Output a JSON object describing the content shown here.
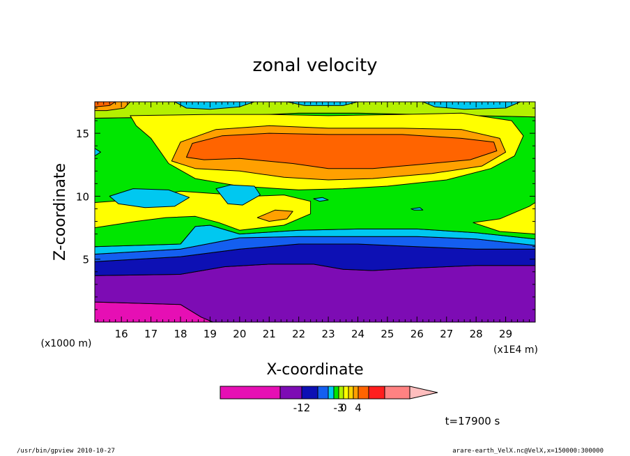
{
  "chart_data": {
    "type": "heatmap",
    "title": "zonal velocity",
    "xlabel": "X-coordinate",
    "ylabel": "Z-coordinate",
    "x_unit_left": "(x1000 m)",
    "x_unit_right": "(x1E4 m)",
    "x_ticks": [
      "16",
      "17",
      "18",
      "19",
      "20",
      "21",
      "22",
      "23",
      "24",
      "25",
      "26",
      "27",
      "28",
      "29"
    ],
    "y_ticks": [
      "5",
      "10",
      "15"
    ],
    "xlim": [
      15.1,
      30
    ],
    "ylim": [
      0,
      17.5
    ],
    "time_label": "t=17900 s",
    "colorbar": {
      "colors": [
        "#e60fb4",
        "#7d0cb4",
        "#0d10b4",
        "#145ff0",
        "#00c8f0",
        "#00e600",
        "#b4f000",
        "#ffff00",
        "#ffd200",
        "#ffa000",
        "#ff6400",
        "#ff1e1e",
        "#ff8282",
        "#ffbebe"
      ],
      "tick_labels": [
        {
          "text": "-12",
          "at_boundary": 2
        },
        {
          "text": "-3",
          "at_boundary": 6
        },
        {
          "text": "0",
          "at_boundary": 7
        },
        {
          "text": "4",
          "at_boundary": 10
        }
      ]
    },
    "bands": [
      {
        "color": "#e60fb4",
        "points": [
          [
            15.1,
            0
          ],
          [
            19.1,
            0
          ],
          [
            18.7,
            0.4
          ],
          [
            18.0,
            1.4
          ],
          [
            15.1,
            1.6
          ]
        ]
      },
      {
        "color": "#7d0cb4",
        "points": [
          [
            15.1,
            1.6
          ],
          [
            18.0,
            1.4
          ],
          [
            18.7,
            0.4
          ],
          [
            19.1,
            0
          ],
          [
            30,
            0
          ],
          [
            30,
            4.5
          ],
          [
            28,
            4.5
          ],
          [
            26,
            4.3
          ],
          [
            24.5,
            4.1
          ],
          [
            23.5,
            4.2
          ],
          [
            22.5,
            4.6
          ],
          [
            21,
            4.6
          ],
          [
            19.5,
            4.4
          ],
          [
            18,
            3.8
          ],
          [
            15.1,
            3.7
          ]
        ]
      },
      {
        "color": "#0d10b4",
        "points": [
          [
            15.1,
            3.7
          ],
          [
            18,
            3.8
          ],
          [
            19.5,
            4.4
          ],
          [
            21,
            4.6
          ],
          [
            22.5,
            4.6
          ],
          [
            23.5,
            4.2
          ],
          [
            24.5,
            4.1
          ],
          [
            26,
            4.3
          ],
          [
            28,
            4.5
          ],
          [
            30,
            4.5
          ],
          [
            30,
            5.8
          ],
          [
            28,
            5.8
          ],
          [
            26,
            6.0
          ],
          [
            24,
            6.2
          ],
          [
            22,
            6.2
          ],
          [
            20,
            5.8
          ],
          [
            18,
            5.2
          ],
          [
            15.1,
            4.8
          ]
        ]
      },
      {
        "color": "#145ff0",
        "points": [
          [
            15.1,
            4.8
          ],
          [
            18,
            5.2
          ],
          [
            20,
            5.8
          ],
          [
            22,
            6.2
          ],
          [
            24,
            6.2
          ],
          [
            26,
            6.0
          ],
          [
            28,
            5.8
          ],
          [
            30,
            5.8
          ],
          [
            30,
            6.1
          ],
          [
            28,
            6.6
          ],
          [
            26,
            6.8
          ],
          [
            24,
            6.8
          ],
          [
            22,
            6.8
          ],
          [
            20,
            6.7
          ],
          [
            18,
            5.8
          ],
          [
            15.1,
            5.4
          ]
        ]
      },
      {
        "color": "#00c8f0",
        "points": [
          [
            15.1,
            5.4
          ],
          [
            18,
            5.8
          ],
          [
            20,
            6.7
          ],
          [
            22,
            6.8
          ],
          [
            24,
            6.8
          ],
          [
            26,
            6.8
          ],
          [
            28,
            6.6
          ],
          [
            30,
            6.1
          ],
          [
            30,
            6.6
          ],
          [
            28,
            7.1
          ],
          [
            26,
            7.4
          ],
          [
            24,
            7.4
          ],
          [
            22,
            7.3
          ],
          [
            20,
            7.0
          ],
          [
            19,
            7.7
          ],
          [
            18.5,
            7.6
          ],
          [
            18.0,
            6.2
          ],
          [
            15.1,
            6.0
          ]
        ]
      },
      {
        "color": "#00e600",
        "points": [
          [
            15.1,
            6.0
          ],
          [
            18.0,
            6.2
          ],
          [
            18.5,
            7.6
          ],
          [
            19,
            7.7
          ],
          [
            20,
            7.0
          ],
          [
            22,
            7.3
          ],
          [
            24,
            7.4
          ],
          [
            26,
            7.4
          ],
          [
            28,
            7.1
          ],
          [
            30,
            6.6
          ],
          [
            30,
            16.3
          ],
          [
            28,
            16.4
          ],
          [
            26,
            16.5
          ],
          [
            24,
            16.6
          ],
          [
            22,
            16.6
          ],
          [
            20,
            16.4
          ],
          [
            18,
            16.3
          ],
          [
            15.1,
            16.2
          ]
        ]
      },
      {
        "color": "#b4f000",
        "points": [
          [
            15.1,
            16.2
          ],
          [
            18,
            16.3
          ],
          [
            20,
            16.4
          ],
          [
            22,
            16.6
          ],
          [
            24,
            16.6
          ],
          [
            26,
            16.5
          ],
          [
            28,
            16.4
          ],
          [
            30,
            16.3
          ],
          [
            30,
            17.5
          ],
          [
            15.1,
            17.5
          ]
        ]
      },
      {
        "color": "#ffff00",
        "points": [
          [
            16.3,
            16.4
          ],
          [
            19.0,
            16.5
          ],
          [
            21,
            16.5
          ],
          [
            23,
            16.4
          ],
          [
            25.5,
            16.5
          ],
          [
            27.5,
            16.6
          ],
          [
            29.2,
            16.0
          ],
          [
            29.6,
            14.8
          ],
          [
            29.3,
            13.2
          ],
          [
            28.5,
            12.2
          ],
          [
            27,
            11.3
          ],
          [
            25,
            10.8
          ],
          [
            23.5,
            10.6
          ],
          [
            22,
            10.5
          ],
          [
            20,
            10.8
          ],
          [
            18.5,
            11.4
          ],
          [
            17.6,
            12.6
          ],
          [
            17.3,
            13.6
          ],
          [
            17.0,
            14.6
          ],
          [
            16.5,
            15.6
          ]
        ]
      },
      {
        "color": "#ffff00",
        "points": [
          [
            15.1,
            9.5
          ],
          [
            16.3,
            9.7
          ],
          [
            18.0,
            10.4
          ],
          [
            19.2,
            10.2
          ],
          [
            20.5,
            10.0
          ],
          [
            21.5,
            10.1
          ],
          [
            22.4,
            9.6
          ],
          [
            22.4,
            8.6
          ],
          [
            21.5,
            7.7
          ],
          [
            20.0,
            7.3
          ],
          [
            19.3,
            7.9
          ],
          [
            18.5,
            8.4
          ],
          [
            17.5,
            8.3
          ],
          [
            16.5,
            8.0
          ],
          [
            15.1,
            7.5
          ]
        ]
      },
      {
        "color": "#ffff00",
        "points": [
          [
            27.9,
            7.9
          ],
          [
            28.8,
            8.2
          ],
          [
            29.8,
            9.2
          ],
          [
            30,
            9.5
          ],
          [
            30,
            7.0
          ],
          [
            28.8,
            7.2
          ]
        ]
      },
      {
        "color": "#ffa000",
        "points": [
          [
            17.7,
            12.8
          ],
          [
            18.0,
            14.3
          ],
          [
            19.2,
            15.3
          ],
          [
            21,
            15.6
          ],
          [
            23,
            15.4
          ],
          [
            25.5,
            15.4
          ],
          [
            27.5,
            15.3
          ],
          [
            28.8,
            14.6
          ],
          [
            29.0,
            13.5
          ],
          [
            28.2,
            12.4
          ],
          [
            26.5,
            11.8
          ],
          [
            24.5,
            11.4
          ],
          [
            23,
            11.3
          ],
          [
            21.5,
            11.5
          ],
          [
            20,
            12.0
          ],
          [
            18.5,
            12.2
          ]
        ]
      },
      {
        "color": "#ffa000",
        "points": [
          [
            20.6,
            8.3
          ],
          [
            21.2,
            8.9
          ],
          [
            21.8,
            8.8
          ],
          [
            21.6,
            8.2
          ],
          [
            21.0,
            8.0
          ]
        ]
      },
      {
        "color": "#ffa000",
        "points": [
          [
            15.1,
            17.5
          ],
          [
            16.3,
            17.5
          ],
          [
            16.1,
            17.0
          ],
          [
            15.5,
            16.8
          ],
          [
            15.1,
            16.8
          ]
        ]
      },
      {
        "color": "#ff6400",
        "points": [
          [
            18.2,
            13.1
          ],
          [
            18.4,
            14.2
          ],
          [
            19.4,
            14.8
          ],
          [
            21,
            15.0
          ],
          [
            23,
            14.9
          ],
          [
            25.5,
            14.9
          ],
          [
            27.5,
            14.6
          ],
          [
            28.6,
            14.3
          ],
          [
            28.7,
            13.6
          ],
          [
            27.8,
            12.9
          ],
          [
            26,
            12.5
          ],
          [
            24.5,
            12.2
          ],
          [
            23,
            12.2
          ],
          [
            21.8,
            12.6
          ],
          [
            20,
            13.0
          ],
          [
            18.8,
            12.9
          ]
        ]
      },
      {
        "color": "#ff6400",
        "points": [
          [
            15.1,
            17.5
          ],
          [
            15.8,
            17.5
          ],
          [
            15.6,
            17.2
          ],
          [
            15.1,
            17.1
          ]
        ]
      },
      {
        "color": "#00c8f0",
        "points": [
          [
            15.6,
            10.0
          ],
          [
            16.4,
            10.6
          ],
          [
            17.6,
            10.5
          ],
          [
            18.3,
            9.9
          ],
          [
            17.8,
            9.2
          ],
          [
            16.8,
            9.1
          ],
          [
            15.9,
            9.4
          ]
        ]
      },
      {
        "color": "#00c8f0",
        "points": [
          [
            19.2,
            10.6
          ],
          [
            19.7,
            10.9
          ],
          [
            20.5,
            10.8
          ],
          [
            20.7,
            10.1
          ],
          [
            20.1,
            9.3
          ],
          [
            19.6,
            9.4
          ]
        ]
      },
      {
        "color": "#00c8f0",
        "points": [
          [
            22.5,
            9.8
          ],
          [
            22.8,
            9.9
          ],
          [
            23.0,
            9.7
          ],
          [
            22.7,
            9.6
          ]
        ]
      },
      {
        "color": "#00c8f0",
        "points": [
          [
            25.8,
            9.0
          ],
          [
            26.1,
            9.1
          ],
          [
            26.2,
            8.9
          ],
          [
            25.9,
            8.9
          ]
        ]
      },
      {
        "color": "#00c8f0",
        "points": [
          [
            17.8,
            17.5
          ],
          [
            20.5,
            17.5
          ],
          [
            20.0,
            17.1
          ],
          [
            19.0,
            16.9
          ],
          [
            18.2,
            17.0
          ]
        ]
      },
      {
        "color": "#00c8f0",
        "points": [
          [
            21.6,
            17.5
          ],
          [
            24.0,
            17.5
          ],
          [
            23.5,
            17.2
          ],
          [
            22.2,
            17.2
          ]
        ]
      },
      {
        "color": "#00c8f0",
        "points": [
          [
            26.2,
            17.5
          ],
          [
            29.5,
            17.5
          ],
          [
            29.0,
            17.0
          ],
          [
            27.6,
            16.9
          ],
          [
            26.6,
            17.1
          ]
        ]
      },
      {
        "color": "#00c8f0",
        "points": [
          [
            15.1,
            13.8
          ],
          [
            15.3,
            13.5
          ],
          [
            15.1,
            13.2
          ]
        ]
      }
    ]
  },
  "footer": {
    "left": "/usr/bin/gpview   2010-10-27",
    "right": "arare-earth_VelX.nc@VelX,x=150000:300000"
  }
}
